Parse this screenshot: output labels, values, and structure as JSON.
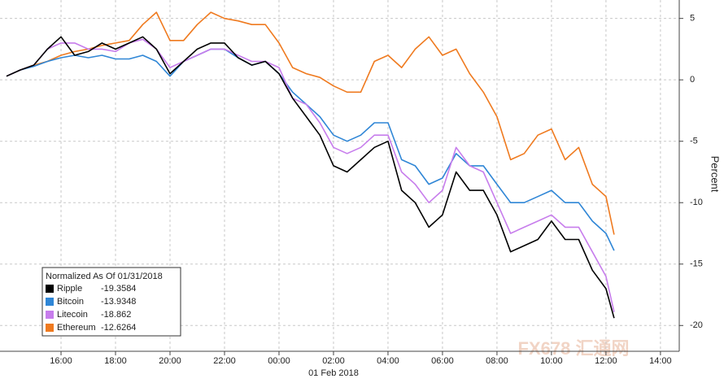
{
  "chart_data": {
    "type": "line",
    "title": "Normalized As Of 01/31/2018",
    "y_label": "Percent",
    "x_sublabel": "01 Feb 2018",
    "watermark": "FX678 汇通网",
    "x": [
      14.0,
      14.5,
      15.0,
      15.5,
      16.0,
      16.5,
      17.0,
      17.5,
      18.0,
      18.5,
      19.0,
      19.5,
      20.0,
      20.5,
      21.0,
      21.5,
      22.0,
      22.5,
      23.0,
      23.5,
      24.0,
      24.5,
      25.0,
      25.5,
      26.0,
      26.5,
      27.0,
      27.5,
      28.0,
      28.5,
      29.0,
      29.5,
      30.0,
      30.5,
      31.0,
      31.5,
      32.0,
      32.5,
      33.0,
      33.5,
      34.0,
      34.5,
      35.0,
      35.5,
      36.0,
      36.3
    ],
    "series": [
      {
        "name": "Ripple",
        "color": "#000000",
        "last_value": -19.3584,
        "values": [
          0.3,
          0.8,
          1.2,
          2.5,
          3.5,
          2.0,
          2.3,
          3.0,
          2.5,
          3.0,
          3.5,
          2.5,
          0.5,
          1.5,
          2.5,
          3.0,
          3.0,
          1.8,
          1.2,
          1.5,
          0.5,
          -1.5,
          -3.0,
          -4.5,
          -7.0,
          -7.5,
          -6.5,
          -5.5,
          -5.0,
          -9.0,
          -10.0,
          -12.0,
          -11.0,
          -7.5,
          -9.0,
          -9.0,
          -11.0,
          -14.0,
          -13.5,
          -13.0,
          -11.5,
          -13.0,
          -13.0,
          -15.5,
          -17.0,
          -19.4
        ]
      },
      {
        "name": "Bitcoin",
        "color": "#2f86d6",
        "last_value": -13.9348,
        "values": [
          0.3,
          0.8,
          1.1,
          1.5,
          1.8,
          2.0,
          1.8,
          2.0,
          1.7,
          1.7,
          2.0,
          1.5,
          0.3,
          1.5,
          2.0,
          2.5,
          2.5,
          1.8,
          1.2,
          1.5,
          0.5,
          -1.0,
          -2.0,
          -3.0,
          -4.5,
          -5.0,
          -4.5,
          -3.5,
          -3.5,
          -6.5,
          -7.0,
          -8.5,
          -8.0,
          -6.0,
          -7.0,
          -7.0,
          -8.5,
          -10.0,
          -10.0,
          -9.5,
          -9.0,
          -10.0,
          -10.0,
          -11.5,
          -12.5,
          -13.9
        ]
      },
      {
        "name": "Litecoin",
        "color": "#c77dec",
        "last_value": -18.862,
        "values": [
          0.3,
          0.8,
          1.2,
          2.5,
          3.0,
          3.0,
          2.5,
          2.5,
          2.3,
          3.0,
          3.3,
          2.5,
          1.0,
          1.5,
          2.0,
          2.5,
          2.5,
          2.0,
          1.5,
          1.5,
          1.0,
          -1.5,
          -2.0,
          -3.5,
          -5.5,
          -6.0,
          -5.5,
          -4.5,
          -4.5,
          -7.5,
          -8.5,
          -10.0,
          -9.0,
          -5.5,
          -7.0,
          -7.5,
          -10.0,
          -12.5,
          -12.0,
          -11.5,
          -11.0,
          -12.0,
          -12.0,
          -14.0,
          -16.0,
          -18.9
        ]
      },
      {
        "name": "Ethereum",
        "color": "#ef7a1f",
        "last_value": -12.6264,
        "values": [
          0.3,
          0.8,
          1.2,
          1.5,
          2.0,
          2.3,
          2.5,
          2.8,
          3.0,
          3.2,
          4.5,
          5.5,
          3.2,
          3.2,
          4.5,
          5.5,
          5.0,
          4.8,
          4.5,
          4.5,
          3.0,
          1.0,
          0.5,
          0.2,
          -0.5,
          -1.0,
          -1.0,
          1.5,
          2.0,
          1.0,
          2.5,
          3.5,
          2.0,
          2.5,
          0.5,
          -1.0,
          -3.0,
          -6.5,
          -6.0,
          -4.5,
          -4.0,
          -6.5,
          -5.5,
          -8.5,
          -9.5,
          -12.6
        ]
      }
    ],
    "xlim": [
      13.76,
      38.69
    ],
    "xticks": [
      {
        "value": 16,
        "label": "16:00"
      },
      {
        "value": 18,
        "label": "18:00"
      },
      {
        "value": 20,
        "label": "20:00"
      },
      {
        "value": 22,
        "label": "22:00"
      },
      {
        "value": 24,
        "label": "00:00"
      },
      {
        "value": 26,
        "label": "02:00"
      },
      {
        "value": 28,
        "label": "04:00"
      },
      {
        "value": 30,
        "label": "06:00"
      },
      {
        "value": 32,
        "label": "08:00"
      },
      {
        "value": 34,
        "label": "10:00"
      },
      {
        "value": 36,
        "label": "12:00"
      },
      {
        "value": 38,
        "label": "14:00"
      }
    ],
    "ylim": [
      -22.1,
      6.5
    ],
    "yticks": [
      5,
      0,
      -5,
      -10,
      -15,
      -20
    ],
    "grid": true,
    "legend_position": "lower left"
  }
}
